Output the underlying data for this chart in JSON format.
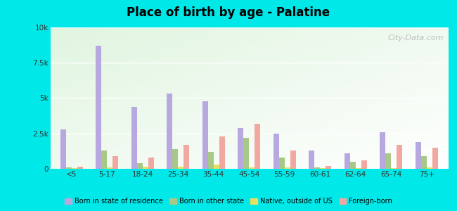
{
  "title": "Place of birth by age - Palatine",
  "categories": [
    "<5",
    "5-17",
    "18-24",
    "25-34",
    "35-44",
    "45-54",
    "55-59",
    "60-61",
    "62-64",
    "65-74",
    "75+"
  ],
  "series": {
    "Born in state of residence": [
      2800,
      8700,
      4400,
      5300,
      4800,
      2900,
      2500,
      1300,
      1100,
      2600,
      1900
    ],
    "Born in other state": [
      100,
      1300,
      400,
      1400,
      1200,
      2200,
      800,
      100,
      500,
      1100,
      900
    ],
    "Native, outside of US": [
      50,
      100,
      150,
      150,
      300,
      100,
      100,
      50,
      50,
      50,
      100
    ],
    "Foreign-born": [
      150,
      900,
      800,
      1700,
      2300,
      3200,
      1300,
      200,
      600,
      1700,
      1500
    ]
  },
  "colors": {
    "Born in state of residence": "#b8a8e0",
    "Born in other state": "#a8c888",
    "Native, outside of US": "#e8e060",
    "Foreign-born": "#f0a8a0"
  },
  "ylim": [
    0,
    10000
  ],
  "yticks": [
    0,
    2500,
    5000,
    7500,
    10000
  ],
  "ytick_labels": [
    "0",
    "2.5k",
    "5k",
    "7.5k",
    "10k"
  ],
  "background_color": "#00e8e8",
  "watermark": "City-Data.com"
}
